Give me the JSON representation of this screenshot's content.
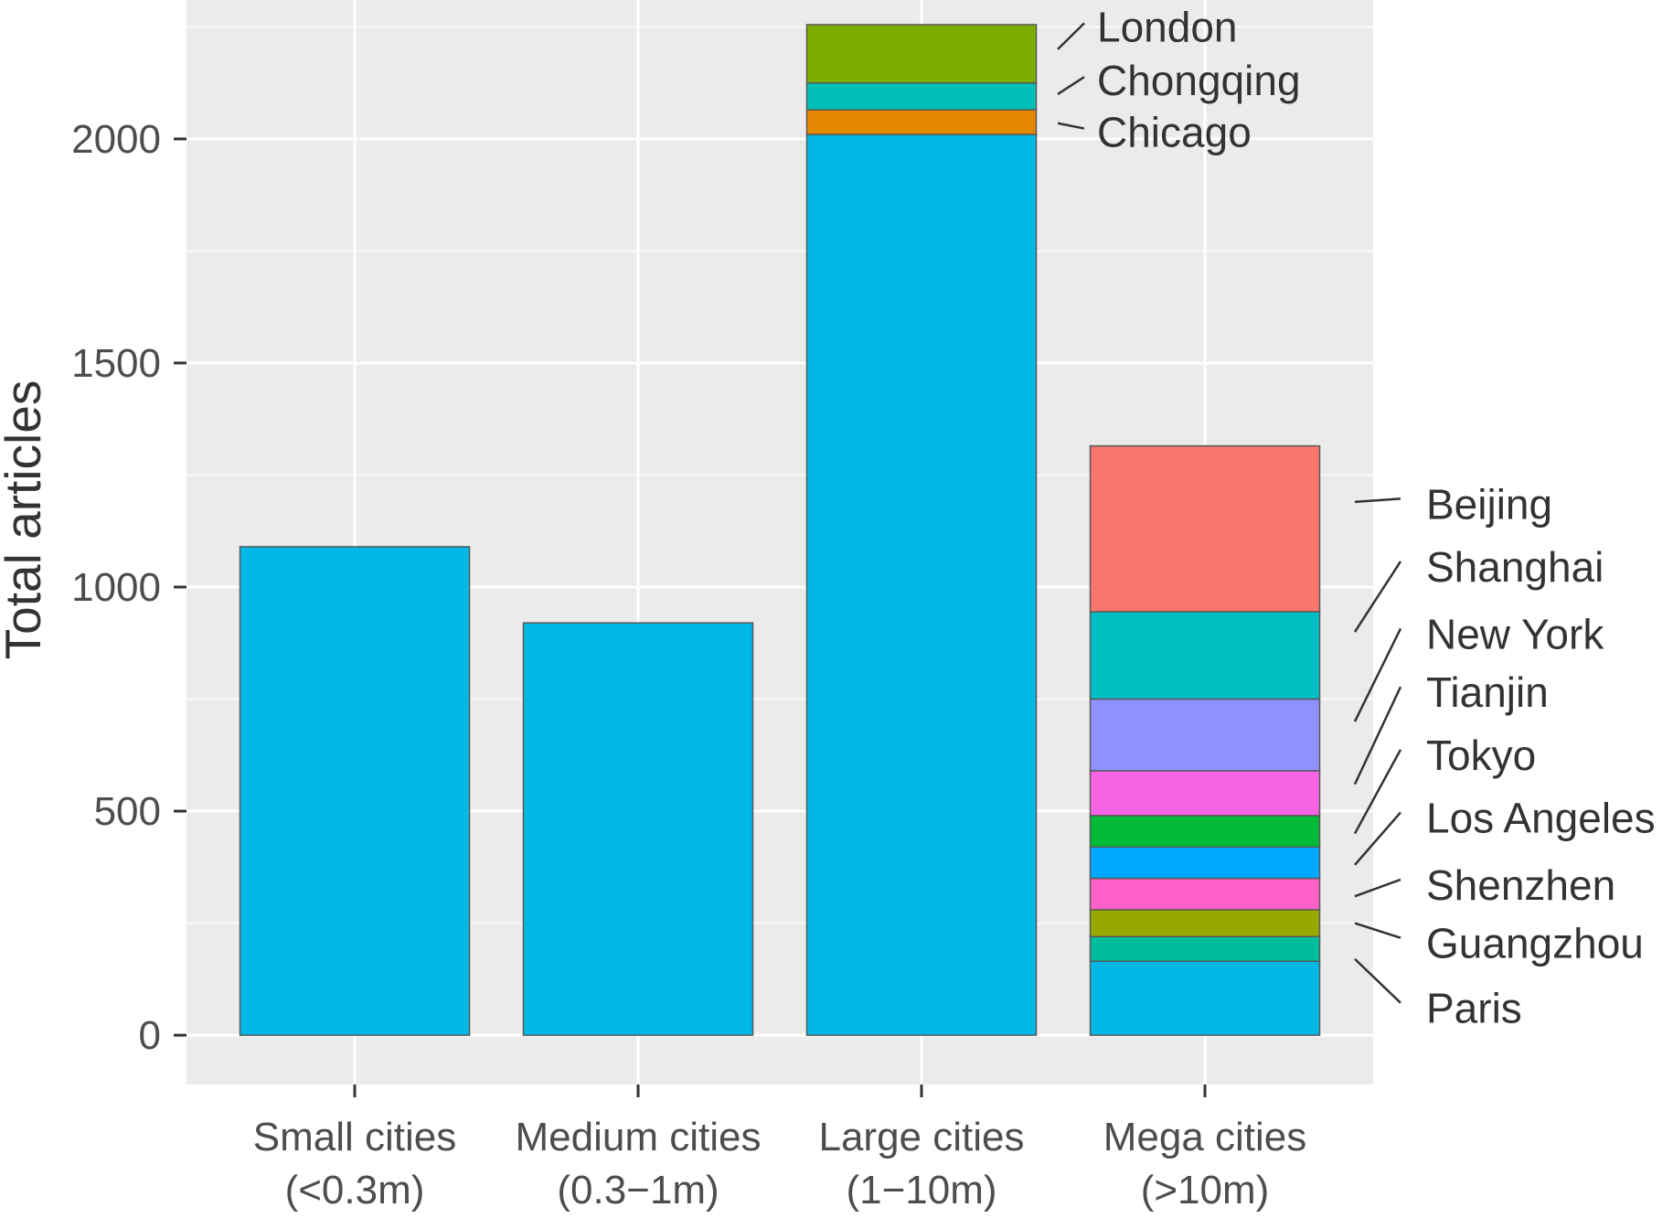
{
  "chart_data": {
    "type": "bar",
    "stacked": true,
    "ylabel": "Total articles",
    "xlabel": "",
    "ylim": [
      -110,
      2310
    ],
    "yticks": [
      0,
      500,
      1000,
      1500,
      2000
    ],
    "ytick_labels": [
      "0",
      "500",
      "1000",
      "1500",
      "2000"
    ],
    "grid": true,
    "categories": [
      {
        "line1": "Small cities",
        "line2": "(<0.3m)"
      },
      {
        "line1": "Medium cities",
        "line2": "(0.3−1m)"
      },
      {
        "line1": "Large cities",
        "line2": "(1−10m)"
      },
      {
        "line1": "Mega cities",
        "line2": "(>10m)"
      }
    ],
    "bars": [
      {
        "category_index": 0,
        "segments": [
          {
            "name": "",
            "value": 1090,
            "color": "#00B8E5"
          }
        ]
      },
      {
        "category_index": 1,
        "segments": [
          {
            "name": "",
            "value": 920,
            "color": "#00B8E5"
          }
        ]
      },
      {
        "category_index": 2,
        "segments": [
          {
            "name": "",
            "value": 2010,
            "color": "#00B8E5"
          },
          {
            "name": "Chicago",
            "value": 55,
            "color": "#E58700"
          },
          {
            "name": "Chongqing",
            "value": 60,
            "color": "#00C0B8"
          },
          {
            "name": "London",
            "value": 130,
            "color": "#7CAE00"
          }
        ]
      },
      {
        "category_index": 3,
        "segments": [
          {
            "name": "Paris",
            "value": 165,
            "color": "#00B8E5"
          },
          {
            "name": "Guangzhou",
            "value": 55,
            "color": "#00BE9C"
          },
          {
            "name": "Shenzhen",
            "value": 60,
            "color": "#99A800"
          },
          {
            "name": "Los Angeles",
            "value": 70,
            "color": "#FF61C9"
          },
          {
            "name": "Tokyo",
            "value": 70,
            "color": "#00A9FF"
          },
          {
            "name": "Tianjin",
            "value": 70,
            "color": "#00BA38"
          },
          {
            "name": "New York",
            "value": 100,
            "color": "#F564E3"
          },
          {
            "name": "Shanghai",
            "value": 160,
            "color": "#8F91FF"
          },
          {
            "name": "Beijing",
            "value": 195,
            "color": "#00BFC4"
          },
          {
            "name": "",
            "value": 370,
            "color": "#F8766D"
          }
        ]
      }
    ],
    "labels_large": [
      {
        "text": "London",
        "value": 2250
      },
      {
        "text": "Chongqing",
        "value": 2130
      },
      {
        "text": "Chicago",
        "value": 2015
      }
    ],
    "labels_mega": [
      {
        "text": "Beijing",
        "value": 1185
      },
      {
        "text": "Shanghai",
        "value": 1045
      },
      {
        "text": "New York",
        "value": 895
      },
      {
        "text": "Tianjin",
        "value": 765
      },
      {
        "text": "Tokyo",
        "value": 625
      },
      {
        "text": "Los Angeles",
        "value": 485
      },
      {
        "text": "Shenzhen",
        "value": 335
      },
      {
        "text": "Guangzhou",
        "value": 205
      },
      {
        "text": "Paris",
        "value": 60
      }
    ]
  }
}
